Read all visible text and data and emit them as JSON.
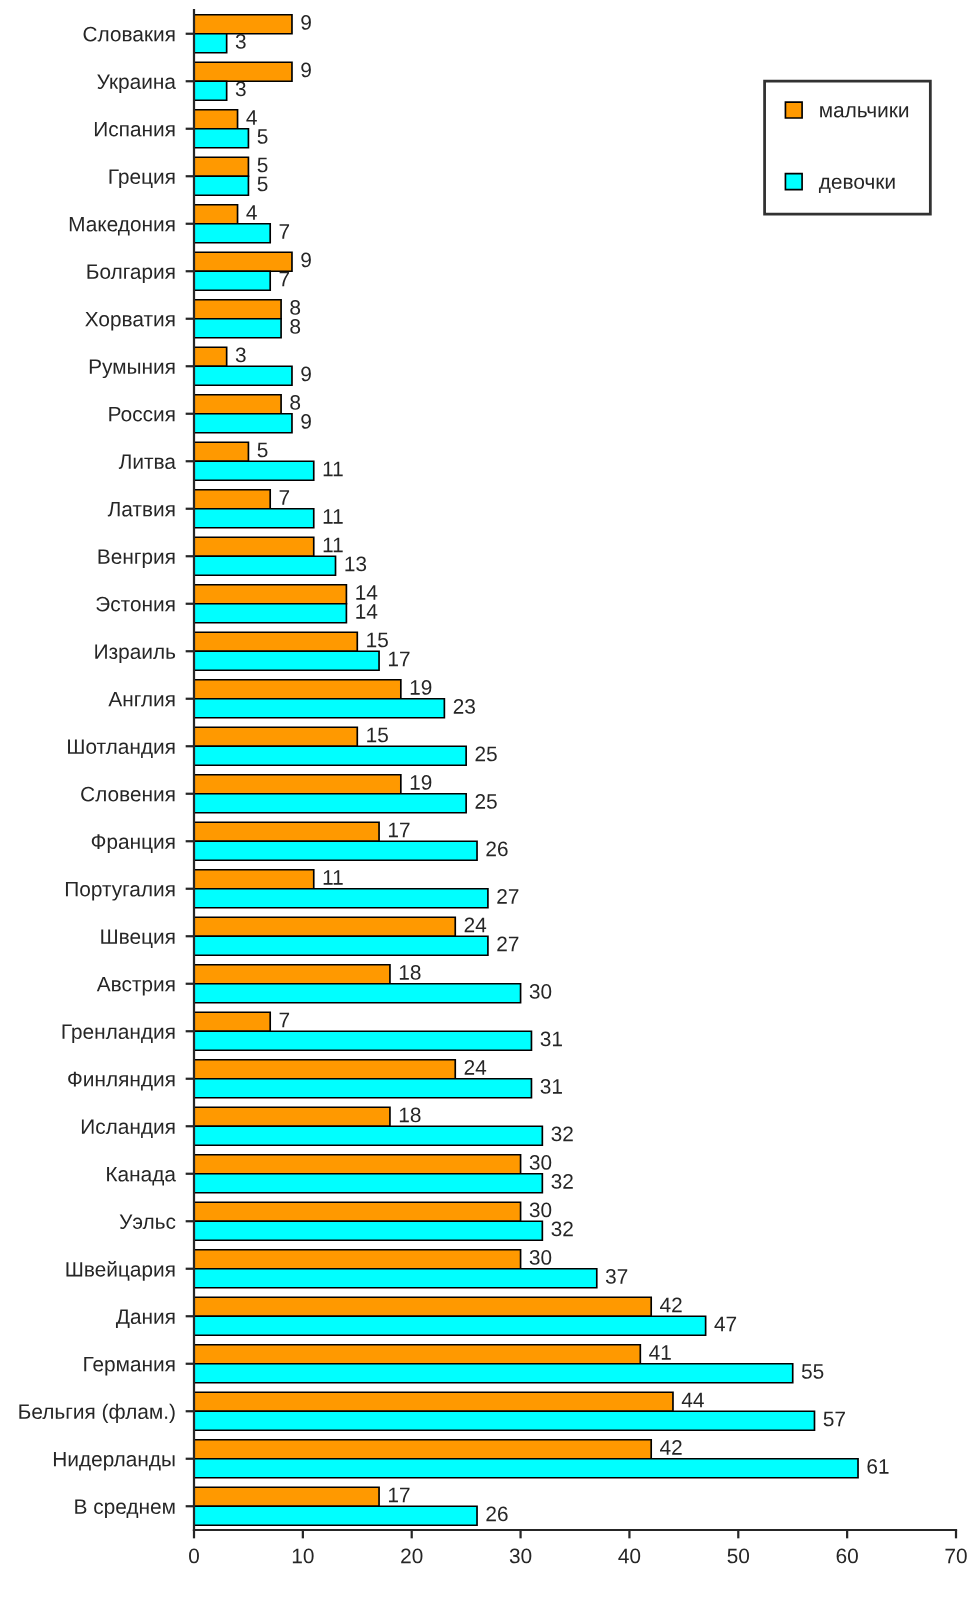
{
  "chart_data": {
    "type": "bar",
    "orientation": "horizontal",
    "categories": [
      "Словакия",
      "Украина",
      "Испания",
      "Греция",
      "Македония",
      "Болгария",
      "Хорватия",
      "Румыния",
      "Россия",
      "Литва",
      "Латвия",
      "Венгрия",
      "Эстония",
      "Израиль",
      "Англия",
      "Шотландия",
      "Словения",
      "Франция",
      "Португалия",
      "Швеция",
      "Австрия",
      "Гренландия",
      "Финляндия",
      "Исландия",
      "Канада",
      "Уэльс",
      "Швейцария",
      "Дания",
      "Германия",
      "Бельгия (флам.)",
      "Нидерланды",
      "В среднем"
    ],
    "series": [
      {
        "name": "мальчики",
        "color": "#ff9900",
        "values": [
          9,
          9,
          4,
          5,
          4,
          9,
          8,
          3,
          8,
          5,
          7,
          11,
          14,
          15,
          19,
          15,
          19,
          17,
          11,
          24,
          18,
          7,
          24,
          18,
          30,
          30,
          30,
          42,
          41,
          44,
          42,
          17
        ]
      },
      {
        "name": "девочки",
        "color": "#00ffff",
        "values": [
          3,
          3,
          5,
          5,
          7,
          7,
          8,
          9,
          9,
          11,
          11,
          13,
          14,
          17,
          23,
          25,
          25,
          26,
          27,
          27,
          30,
          31,
          31,
          32,
          32,
          32,
          37,
          47,
          55,
          57,
          61,
          26
        ]
      }
    ],
    "xlim": [
      0,
      70
    ],
    "xticks": [
      0,
      10,
      20,
      30,
      40,
      50,
      60,
      70
    ],
    "data_labels": true,
    "legend": "top right",
    "grid": false
  }
}
